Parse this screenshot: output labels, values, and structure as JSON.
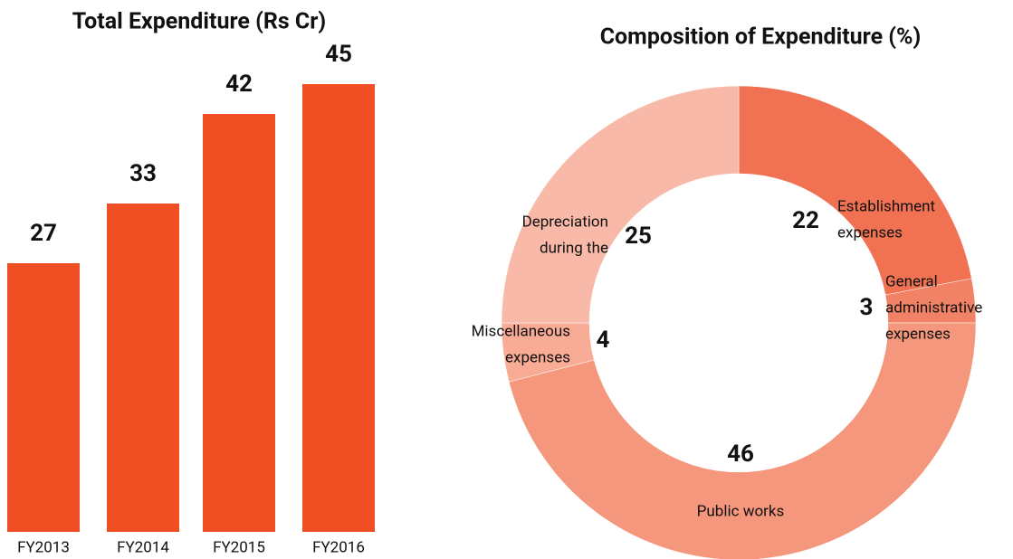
{
  "chart_data": [
    {
      "type": "bar",
      "title": "Total Expenditure (Rs Cr)",
      "categories": [
        "FY2013",
        "FY2014",
        "FY2015",
        "FY2016"
      ],
      "values": [
        27,
        33,
        42,
        45
      ],
      "color": "#f04e23"
    },
    {
      "type": "donut",
      "title": "Composition of Expenditure (%)",
      "categories": [
        [
          "Establishment",
          "expenses"
        ],
        [
          "General",
          "administrative",
          "expenses"
        ],
        [
          "Public works"
        ],
        [
          "Miscellaneous",
          "expenses"
        ],
        [
          "Depreciation",
          "during the"
        ]
      ],
      "values": [
        22,
        3,
        46,
        4,
        25
      ],
      "colors": [
        "#f07252",
        "#f28266",
        "#f5977c",
        "#f8ab95",
        "#f8b9a8"
      ]
    }
  ]
}
